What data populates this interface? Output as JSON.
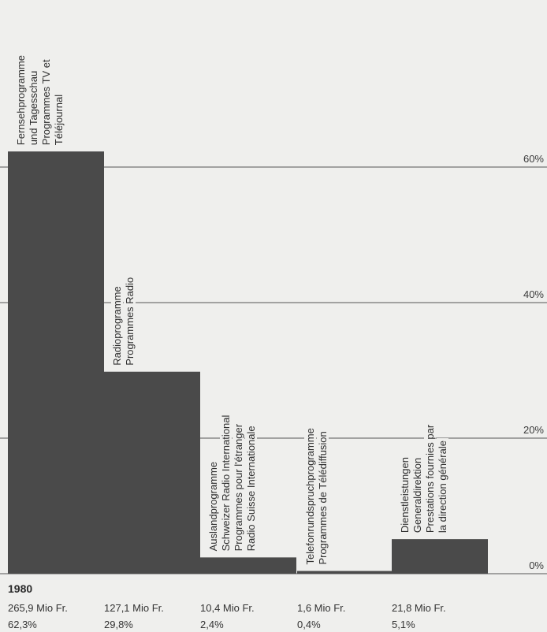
{
  "chart_data": {
    "type": "bar",
    "year": "1980",
    "ylim": [
      0,
      62.3
    ],
    "yticks": [
      0,
      20,
      40,
      60
    ],
    "ytick_labels": [
      "0%",
      "20%",
      "40%",
      "60%"
    ],
    "grid": true,
    "categories": [
      [
        "Fernsehprogramme",
        "und Tagesschau",
        "Programmes TV et",
        "Téléjournal"
      ],
      [
        "Radioprogramme",
        "Programmes Radio"
      ],
      [
        "Auslandprogramme",
        "Schweizer Radio International",
        "Programmes pour l'étranger",
        "Radio Suisse Internationale"
      ],
      [
        "Telefonrundspruchprogramme",
        "Programmes de Télédiffusion"
      ],
      [
        "Dienstleistungen",
        "Generaldirektion",
        "Prestations fournies par",
        "la direction générale"
      ]
    ],
    "values": [
      62.3,
      29.8,
      2.4,
      0.4,
      5.1
    ],
    "amounts": [
      "265,9 Mio Fr.",
      "127,1 Mio Fr.",
      "10,4 Mio Fr.",
      "1,6 Mio Fr.",
      "21,8 Mio Fr."
    ],
    "percent_labels": [
      "62,3%",
      "29,8%",
      "2,4%",
      "0,4%",
      "5,1%"
    ],
    "colors": {
      "bar": "#4a4a4a",
      "grid": "#555555",
      "background": "#efefed"
    }
  }
}
